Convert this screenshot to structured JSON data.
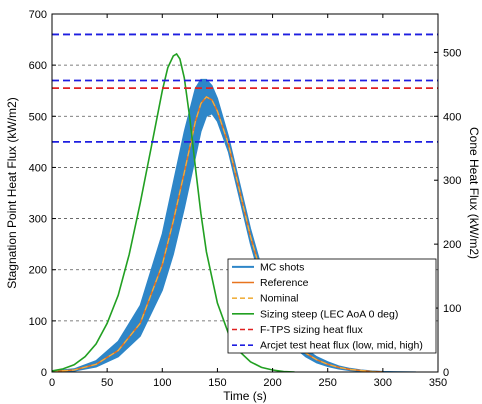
{
  "chart_data": {
    "type": "line",
    "xlabel": "Time (s)",
    "ylabel_left": "Stagnation Point Heat Flux (kW/m2)",
    "ylabel_right": "Cone Heat Flux (kW/m2)",
    "xlim": [
      0,
      350
    ],
    "ylim_left": [
      0,
      700
    ],
    "ylim_right": [
      0,
      560
    ],
    "x_ticks": [
      0,
      50,
      100,
      150,
      200,
      250,
      300,
      350
    ],
    "y_ticks_left": [
      0,
      100,
      200,
      300,
      400,
      500,
      600,
      700
    ],
    "y_ticks_right": [
      0,
      100,
      200,
      300,
      400,
      500
    ],
    "grid": "horizontal dashed",
    "legend_position": "lower-right",
    "series": [
      {
        "name": "MC shots",
        "color": "#2e86c8",
        "style": "band",
        "x": [
          0,
          20,
          40,
          60,
          80,
          100,
          110,
          120,
          130,
          135,
          140,
          145,
          150,
          160,
          170,
          180,
          190,
          200,
          210,
          220,
          230,
          240,
          250,
          260,
          270,
          280,
          290,
          300,
          310,
          320,
          330
        ],
        "upper": [
          2,
          6,
          22,
          60,
          130,
          270,
          370,
          470,
          555,
          572,
          572,
          560,
          535,
          460,
          370,
          280,
          205,
          145,
          100,
          68,
          45,
          30,
          20,
          12,
          7,
          4,
          2,
          1,
          0.5,
          0.2,
          0
        ],
        "lower": [
          0,
          2,
          10,
          30,
          70,
          160,
          230,
          320,
          420,
          470,
          500,
          505,
          490,
          430,
          340,
          250,
          175,
          115,
          75,
          48,
          30,
          18,
          11,
          6,
          3,
          1.5,
          0.5,
          0.2,
          0,
          0,
          0
        ]
      },
      {
        "name": "Reference",
        "color": "#e8741e",
        "style": "solid",
        "x": [
          0,
          20,
          40,
          60,
          80,
          100,
          110,
          120,
          130,
          135,
          140,
          145,
          150,
          160,
          170,
          180,
          190,
          200,
          210,
          220,
          230,
          240,
          250,
          260,
          270,
          280,
          290,
          300
        ],
        "y": [
          1,
          4,
          15,
          42,
          95,
          210,
          295,
          390,
          490,
          525,
          538,
          532,
          510,
          445,
          355,
          265,
          190,
          130,
          88,
          58,
          37,
          24,
          15,
          9,
          5,
          3,
          1,
          0
        ]
      },
      {
        "name": "Nominal",
        "color": "#f0b040",
        "style": "dashed",
        "x": [
          0,
          20,
          40,
          60,
          80,
          100,
          110,
          120,
          130,
          135,
          140,
          145,
          150,
          160,
          170,
          180,
          190,
          200,
          210,
          220,
          230,
          240,
          250,
          260,
          270,
          280,
          290,
          300
        ],
        "y": [
          1,
          4,
          15,
          42,
          95,
          210,
          295,
          390,
          490,
          525,
          538,
          532,
          510,
          445,
          355,
          265,
          190,
          130,
          88,
          58,
          37,
          24,
          15,
          9,
          5,
          3,
          1,
          0
        ]
      },
      {
        "name": "Sizing steep (LEC AoA 0 deg)",
        "color": "#22a022",
        "style": "solid",
        "x": [
          0,
          10,
          20,
          30,
          40,
          50,
          60,
          70,
          80,
          90,
          100,
          105,
          110,
          113,
          116,
          120,
          125,
          130,
          135,
          140,
          150,
          160,
          170,
          180,
          190,
          200,
          210,
          220
        ],
        "y": [
          2,
          6,
          14,
          30,
          55,
          95,
          150,
          230,
          330,
          440,
          550,
          595,
          618,
          622,
          612,
          575,
          495,
          400,
          310,
          235,
          135,
          75,
          40,
          20,
          9,
          4,
          1,
          0
        ]
      },
      {
        "name": "F-TPS sizing heat flux",
        "color": "#e02020",
        "style": "dashed",
        "y": 555
      },
      {
        "name": "Arcjet test heat flux (low, mid, high)",
        "color": "#1e1ee0",
        "style": "dashed",
        "y_values": [
          450,
          570,
          660
        ]
      }
    ]
  }
}
